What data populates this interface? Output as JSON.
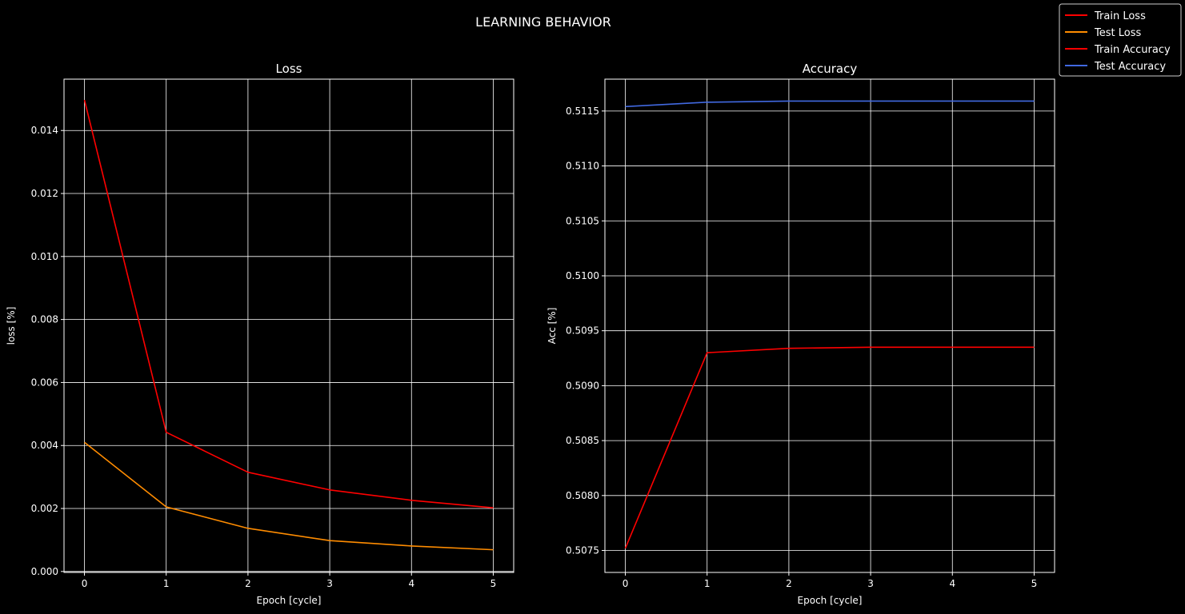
{
  "figure": {
    "suptitle": "LEARNING BEHAVIOR",
    "background": "#000000",
    "foreground": "#ffffff",
    "legend": {
      "location": "top-right",
      "entries": [
        {
          "label": "Train Loss",
          "color": "#ff0000"
        },
        {
          "label": "Test Loss",
          "color": "#ff8c00"
        },
        {
          "label": "Train Accuracy",
          "color": "#ff0000"
        },
        {
          "label": "Test Accuracy",
          "color": "#4169e1"
        }
      ]
    }
  },
  "chart_data": [
    {
      "type": "line",
      "title": "Loss",
      "xlabel": "Epoch [cycle]",
      "ylabel": "loss [%]",
      "xlim": [
        -0.25,
        5.25
      ],
      "ylim": [
        -3e-05,
        0.01563
      ],
      "xticks": [
        0,
        1,
        2,
        3,
        4,
        5
      ],
      "xtick_labels": [
        "0",
        "1",
        "2",
        "3",
        "4",
        "5"
      ],
      "yticks": [
        0.0,
        0.002,
        0.004,
        0.006,
        0.008,
        0.01,
        0.012,
        0.014
      ],
      "ytick_labels": [
        "0.000",
        "0.002",
        "0.004",
        "0.006",
        "0.008",
        "0.010",
        "0.012",
        "0.014"
      ],
      "grid": true,
      "x": [
        0,
        1,
        2,
        3,
        4,
        5
      ],
      "series": [
        {
          "name": "Train Loss",
          "color": "#ff0000",
          "values": [
            0.01497,
            0.00442,
            0.00315,
            0.00259,
            0.00226,
            0.00202
          ]
        },
        {
          "name": "Test Loss",
          "color": "#ff8c00",
          "values": [
            0.0041,
            0.00205,
            0.00137,
            0.00098,
            0.00081,
            0.00069
          ]
        }
      ]
    },
    {
      "type": "line",
      "title": "Accuracy",
      "xlabel": "Epoch [cycle]",
      "ylabel": "Acc [%]",
      "xlim": [
        -0.25,
        5.25
      ],
      "ylim": [
        0.5073,
        0.51179
      ],
      "xticks": [
        0,
        1,
        2,
        3,
        4,
        5
      ],
      "xtick_labels": [
        "0",
        "1",
        "2",
        "3",
        "4",
        "5"
      ],
      "yticks": [
        0.5075,
        0.508,
        0.5085,
        0.509,
        0.5095,
        0.51,
        0.5105,
        0.511,
        0.5115
      ],
      "ytick_labels": [
        "0.5075",
        "0.5080",
        "0.5085",
        "0.5090",
        "0.5095",
        "0.5100",
        "0.5105",
        "0.5110",
        "0.5115"
      ],
      "grid": true,
      "x": [
        0,
        1,
        2,
        3,
        4,
        5
      ],
      "series": [
        {
          "name": "Train Accuracy",
          "color": "#ff0000",
          "values": [
            0.50752,
            0.5093,
            0.50934,
            0.50935,
            0.50935,
            0.50935
          ]
        },
        {
          "name": "Test Accuracy",
          "color": "#4169e1",
          "values": [
            0.51154,
            0.51158,
            0.51159,
            0.51159,
            0.51159,
            0.51159
          ]
        }
      ]
    }
  ]
}
